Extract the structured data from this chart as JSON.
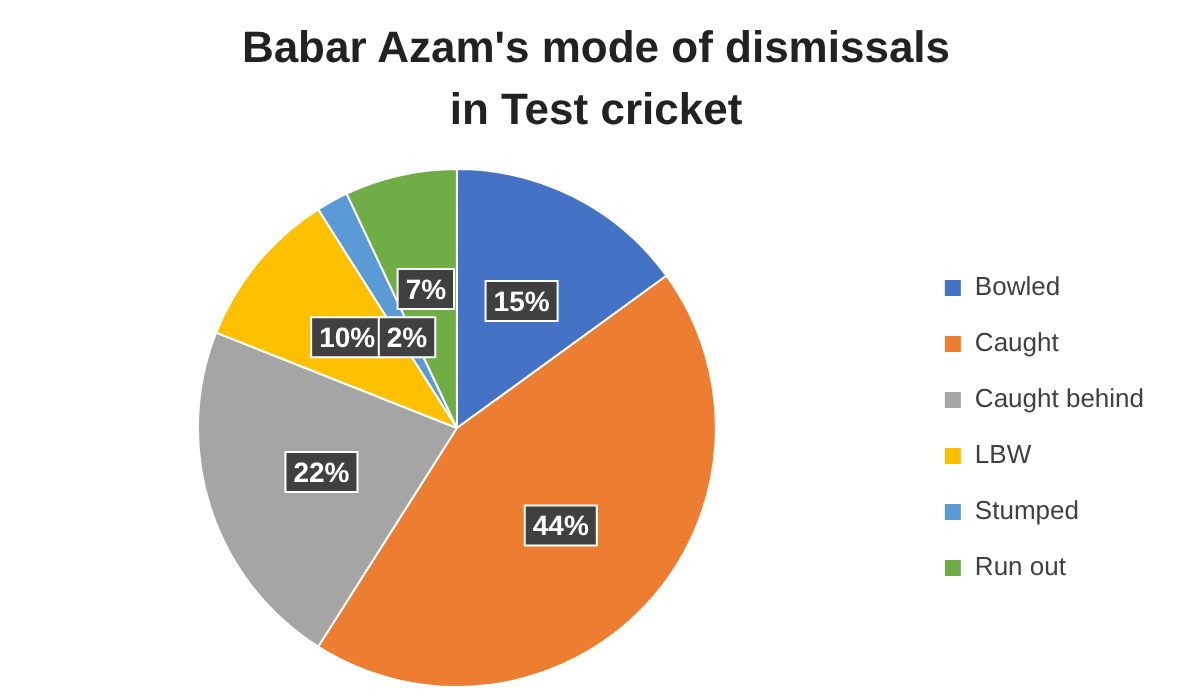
{
  "chart_data": {
    "type": "pie",
    "title": "Babar Azam's mode of dismissals in Test cricket",
    "categories": [
      "Bowled",
      "Caught",
      "Caught behind",
      "LBW",
      "Stumped",
      "Run out"
    ],
    "values": [
      15,
      44,
      22,
      10,
      2,
      7
    ],
    "colors": [
      "#4472c4",
      "#ed7d31",
      "#a5a5a5",
      "#ffc000",
      "#5b9bd5",
      "#70ad47"
    ],
    "value_labels": [
      "15%",
      "44%",
      "22%",
      "10%",
      "2%",
      "7%"
    ],
    "legend": "right"
  }
}
